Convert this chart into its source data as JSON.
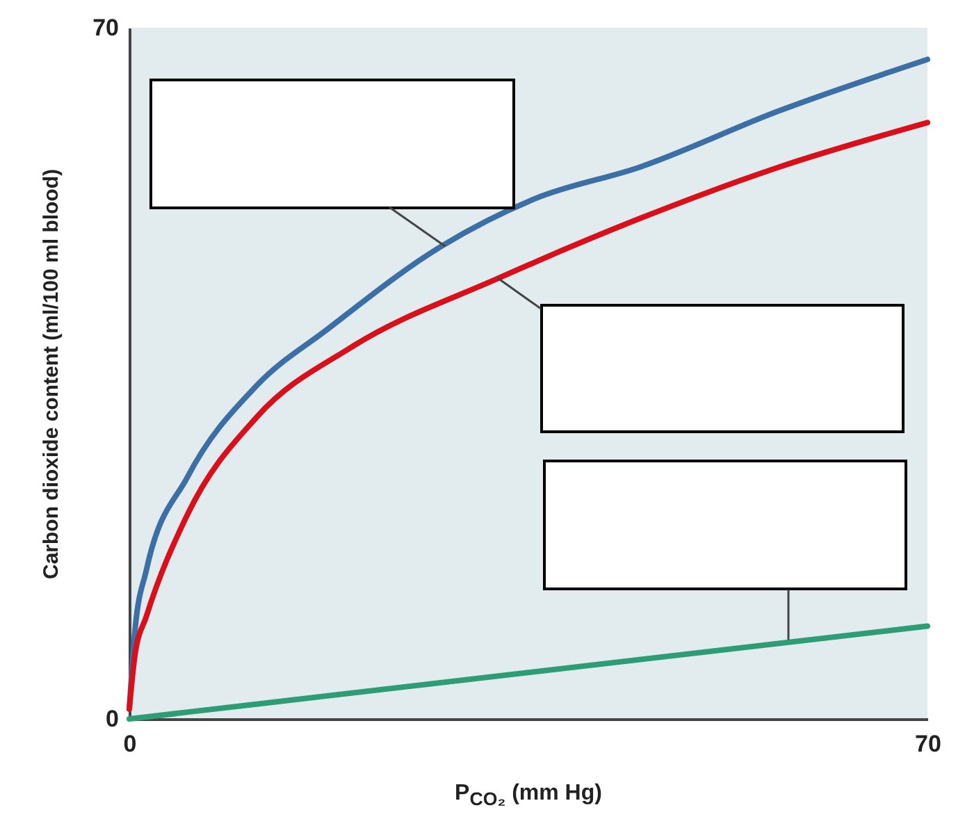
{
  "chart_data": {
    "type": "line",
    "xlabel": "P$_{CO₂}$ (mm Hg)",
    "ylabel": "Carbon dioxide content (ml/100 ml blood)",
    "xlim": [
      0,
      70
    ],
    "ylim": [
      0,
      70
    ],
    "xticks": [
      0,
      70
    ],
    "yticks": [
      0,
      70
    ],
    "grid": false,
    "marker": "none",
    "line_style": "solid",
    "series": [
      {
        "color": "#3c6fa6",
        "x": [
          0,
          0.5,
          1.5,
          5.1,
          11.2,
          17.3,
          27.4,
          35.6,
          44.8,
          57,
          70
        ],
        "values": [
          1,
          9,
          15.1,
          24.5,
          33.8,
          39.4,
          47.9,
          52.7,
          55.9,
          61.6,
          66.8
        ]
      },
      {
        "color": "#d7101c",
        "x": [
          0,
          0.5,
          1.5,
          5.1,
          11.2,
          19.4,
          32.3,
          44.8,
          57,
          70
        ],
        "values": [
          1,
          6.5,
          10.4,
          20.7,
          30.6,
          37.6,
          44.6,
          50.7,
          55.9,
          60.4
        ]
      },
      {
        "color": "#2e9c74",
        "x": [
          0,
          70
        ],
        "values": [
          0,
          9.4
        ]
      }
    ]
  }
}
